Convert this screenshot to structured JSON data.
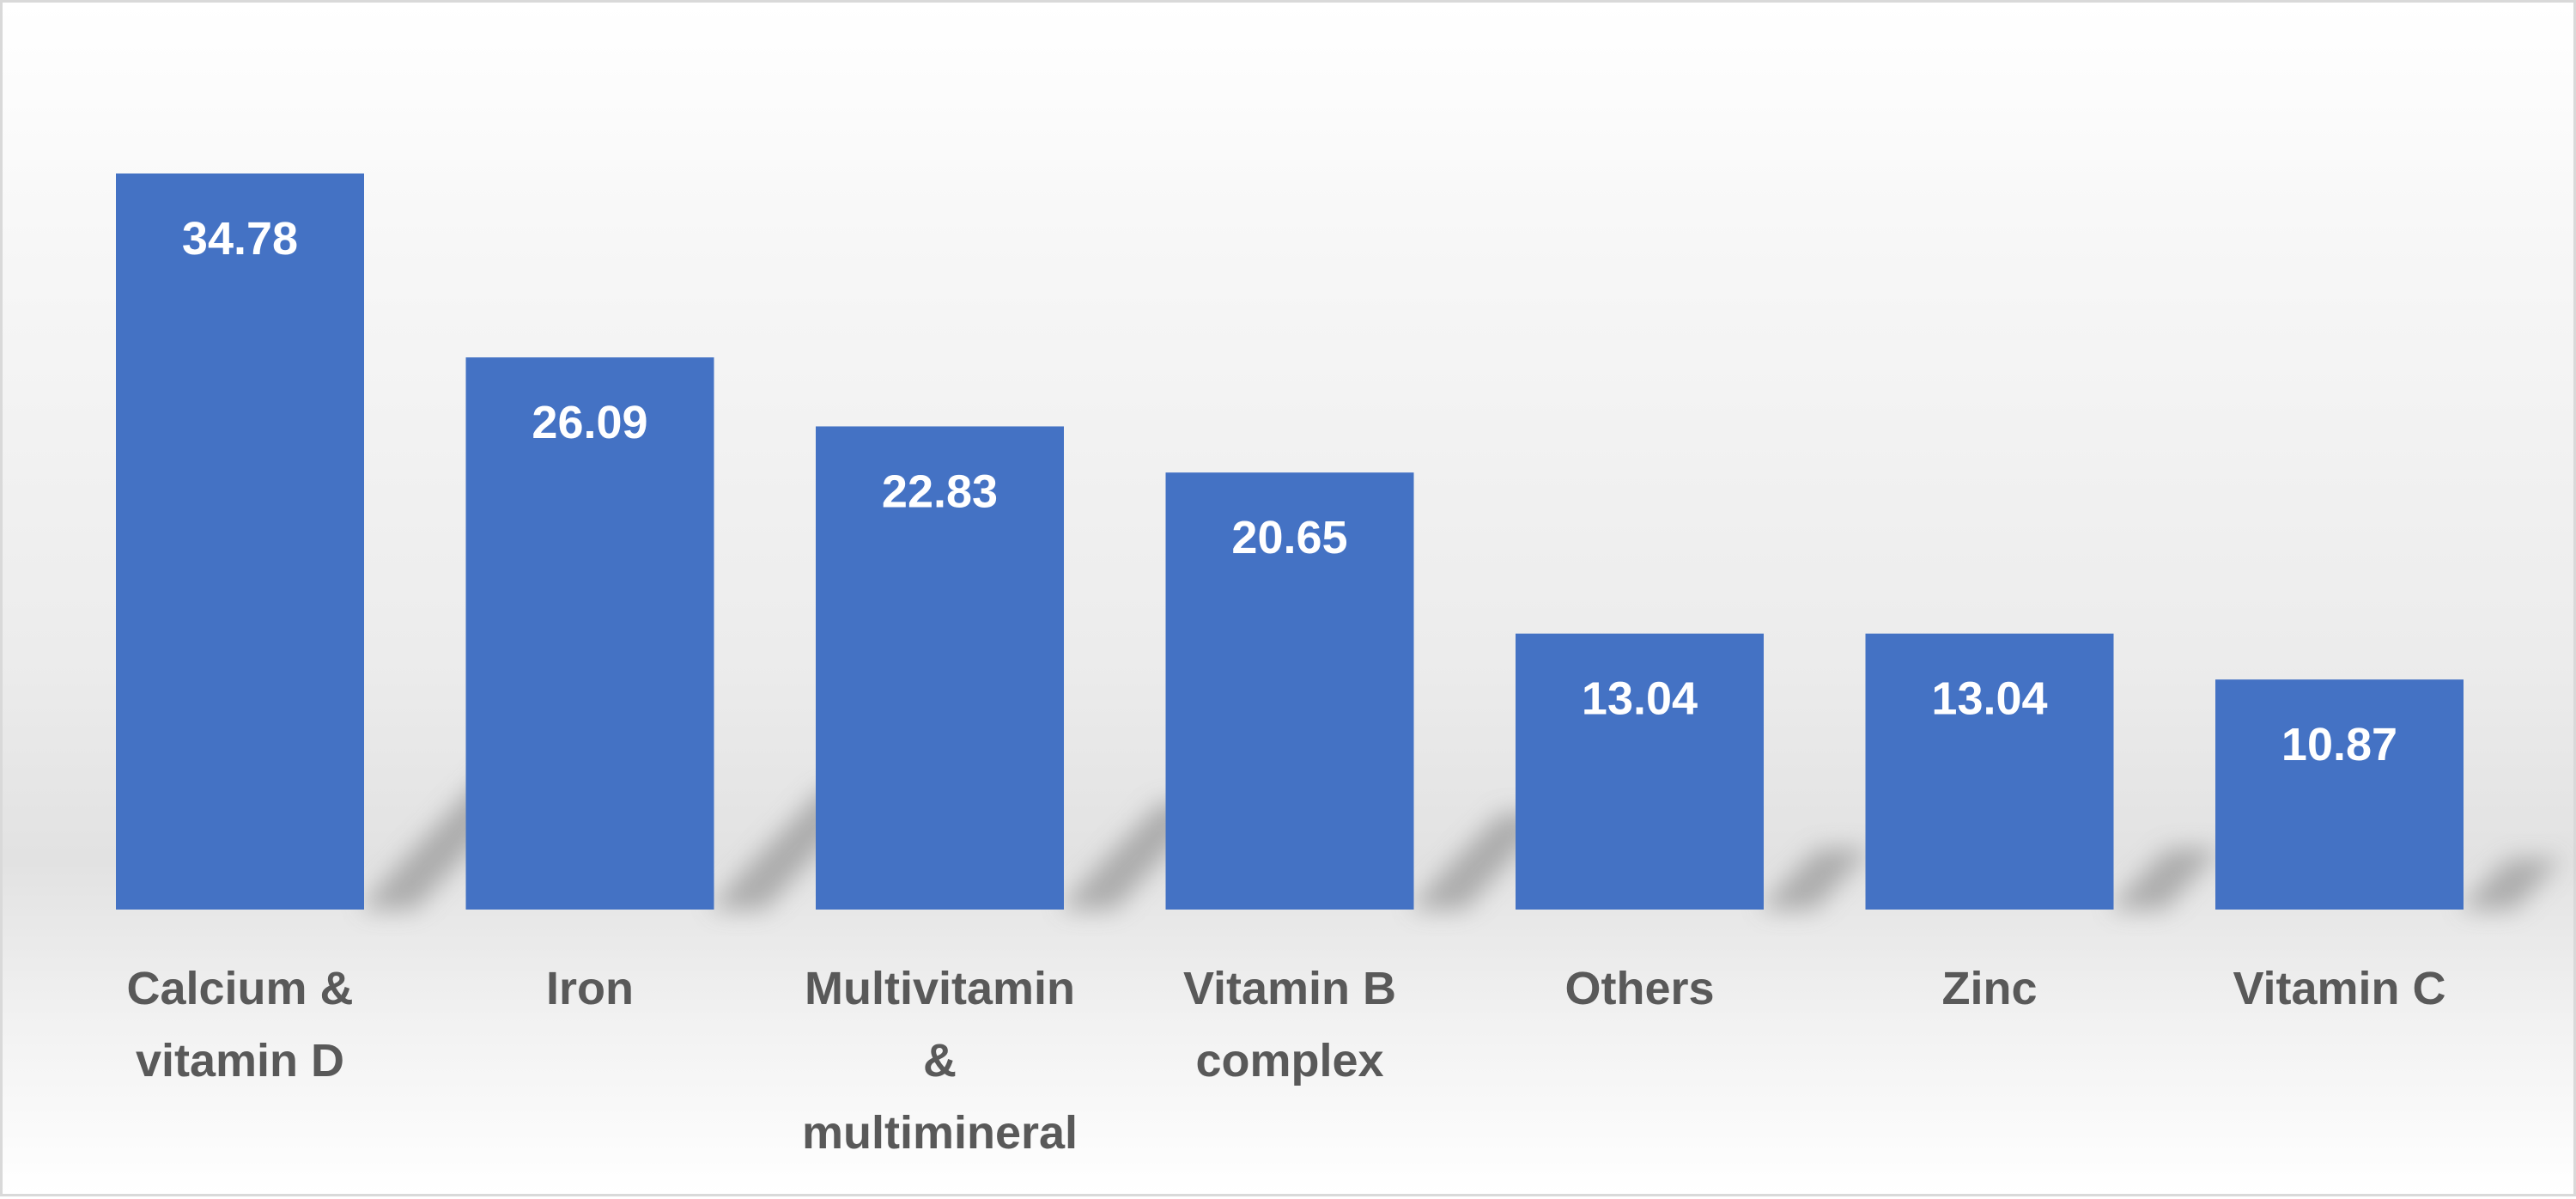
{
  "chart_data": {
    "type": "bar",
    "categories": [
      "Calcium & vitamin D",
      "Iron",
      "Multivitamin & multimineral",
      "Vitamin B complex",
      "Others",
      "Zinc",
      "Vitamin C"
    ],
    "category_lines": [
      [
        "Calcium &",
        "vitamin D"
      ],
      [
        "Iron"
      ],
      [
        "Multivitamin",
        "&",
        "multimineral"
      ],
      [
        "Vitamin B",
        "complex"
      ],
      [
        "Others"
      ],
      [
        "Zinc"
      ],
      [
        "Vitamin C"
      ]
    ],
    "values": [
      34.78,
      26.09,
      22.83,
      20.65,
      13.04,
      13.04,
      10.87
    ],
    "data_labels": [
      "34.78",
      "26.09",
      "22.83",
      "20.65",
      "13.04",
      "13.04",
      "10.87"
    ],
    "title": "",
    "xlabel": "",
    "ylabel": "",
    "ylim": [
      0,
      34.78
    ],
    "grid": false,
    "legend": "none",
    "bar_color": "#4472c4",
    "label_color": "#595959"
  }
}
